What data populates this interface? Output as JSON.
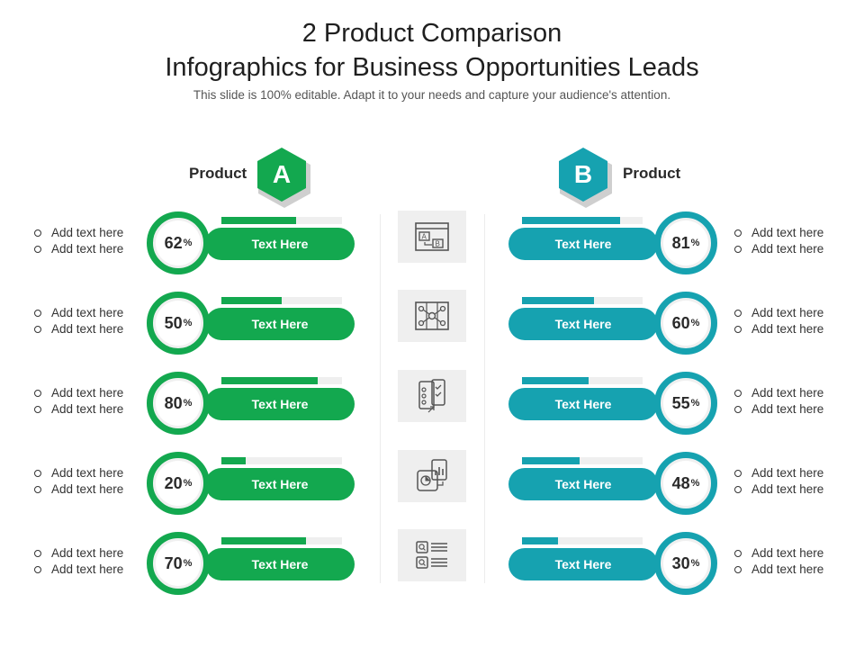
{
  "header": {
    "title_line1": "2 Product Comparison",
    "title_line2": "Infographics for Business Opportunities Leads",
    "subtitle": "This slide is 100% editable. Adapt it to your needs and capture your audience's attention."
  },
  "product_a": {
    "label": "Product",
    "letter": "A",
    "color": "#13a84f"
  },
  "product_b": {
    "label": "Product",
    "letter": "B",
    "color": "#16a2b0"
  },
  "percent_sign": "%",
  "rows": [
    {
      "icon": "browser-window-icon",
      "a": {
        "value": 62,
        "button": "Text Here",
        "bullets": [
          "Add text here",
          "Add text here"
        ]
      },
      "b": {
        "value": 81,
        "button": "Text Here",
        "bullets": [
          "Add text here",
          "Add text here"
        ]
      }
    },
    {
      "icon": "network-diagram-icon",
      "a": {
        "value": 50,
        "button": "Text Here",
        "bullets": [
          "Add text here",
          "Add text here"
        ]
      },
      "b": {
        "value": 60,
        "button": "Text Here",
        "bullets": [
          "Add text here",
          "Add text here"
        ]
      }
    },
    {
      "icon": "mobile-devices-icon",
      "a": {
        "value": 80,
        "button": "Text Here",
        "bullets": [
          "Add text here",
          "Add text here"
        ]
      },
      "b": {
        "value": 55,
        "button": "Text Here",
        "bullets": [
          "Add text here",
          "Add text here"
        ]
      }
    },
    {
      "icon": "analytics-documents-icon",
      "a": {
        "value": 20,
        "button": "Text Here",
        "bullets": [
          "Add text here",
          "Add text here"
        ]
      },
      "b": {
        "value": 48,
        "button": "Text Here",
        "bullets": [
          "Add text here",
          "Add text here"
        ]
      }
    },
    {
      "icon": "search-list-icon",
      "a": {
        "value": 70,
        "button": "Text Here",
        "bullets": [
          "Add text here",
          "Add text here"
        ]
      },
      "b": {
        "value": 30,
        "button": "Text Here",
        "bullets": [
          "Add text here",
          "Add text here"
        ]
      }
    }
  ]
}
